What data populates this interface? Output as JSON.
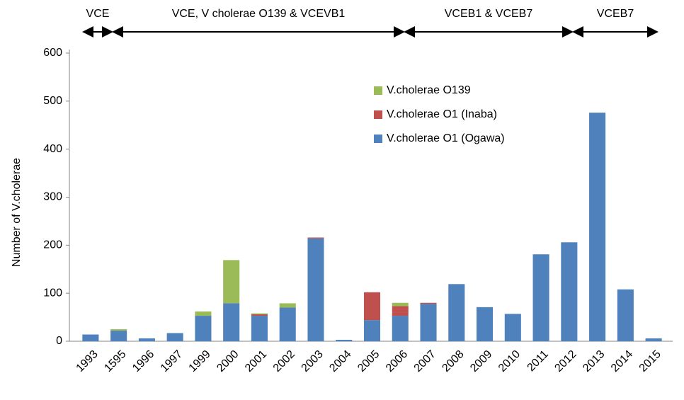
{
  "chart_data": {
    "type": "bar",
    "stacked": true,
    "y_axis_label": "Number of V.cholerae",
    "annotations": [
      "VCE",
      "VCE, V cholerae O139 & VCEVB1",
      "VCEB1 & VCEB7",
      "VCEB7"
    ],
    "categories": [
      "1993",
      "1595",
      "1996",
      "1997",
      "1999",
      "2000",
      "2001",
      "2002",
      "2003",
      "2004",
      "2005",
      "2006",
      "2007",
      "2008",
      "2009",
      "2010",
      "2011",
      "2012",
      "2013",
      "2014",
      "2015"
    ],
    "series": [
      {
        "name": "V.cholerae O1 (Ogawa)",
        "color": "#4f81bd",
        "values": [
          14,
          22,
          6,
          17,
          53,
          79,
          53,
          70,
          214,
          3,
          44,
          53,
          78,
          119,
          71,
          57,
          181,
          206,
          476,
          108,
          6
        ]
      },
      {
        "name": "V.cholerae O1 (Inaba)",
        "color": "#c0504d",
        "values": [
          0,
          0,
          0,
          0,
          0,
          0,
          3,
          0,
          2,
          0,
          58,
          20,
          2,
          0,
          0,
          0,
          0,
          0,
          0,
          0,
          0
        ]
      },
      {
        "name": "V.cholerae O139",
        "color": "#9bbb59",
        "values": [
          0,
          3,
          0,
          0,
          9,
          90,
          2,
          9,
          0,
          0,
          0,
          7,
          0,
          0,
          0,
          0,
          0,
          0,
          0,
          0,
          0
        ]
      }
    ],
    "ylim": [
      0,
      600
    ],
    "yticks": [
      0,
      100,
      200,
      300,
      400,
      500,
      600
    ],
    "grid": false,
    "legend": "upper center"
  }
}
